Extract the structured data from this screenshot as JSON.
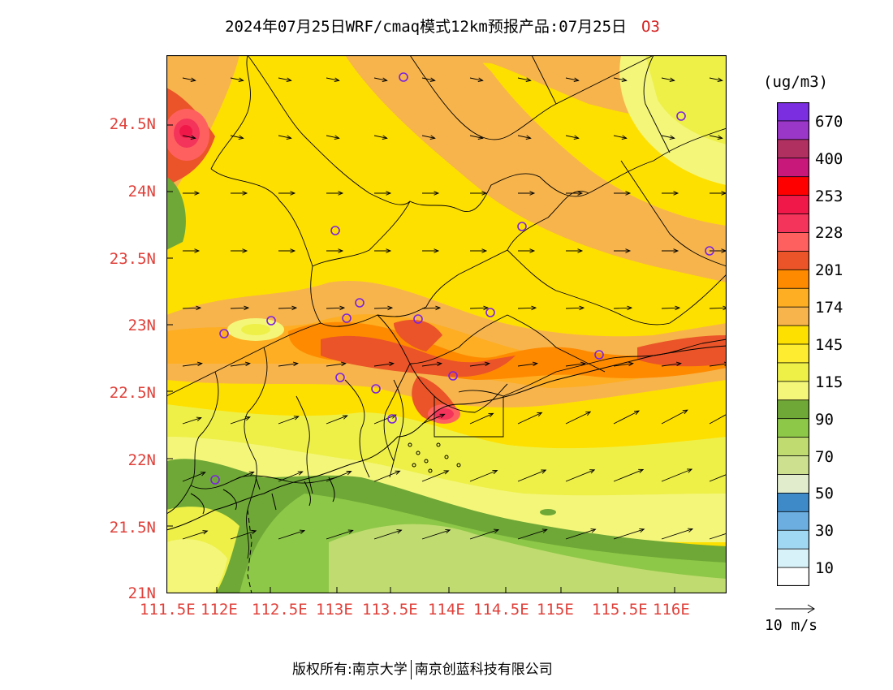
{
  "header": {
    "title": "2024年07月25日WRF/cmaq模式12km预报产品:07月25日",
    "species": "O3"
  },
  "map": {
    "projection": "lat-lon",
    "lon_range": [
      111.5,
      116.5
    ],
    "lat_range": [
      21.0,
      25.0
    ],
    "lat_ticks": [
      "21N",
      "21.5N",
      "22N",
      "22.5N",
      "23N",
      "23.5N",
      "24N",
      "24.5N"
    ],
    "lon_ticks": [
      "111.5E",
      "112E",
      "112.5E",
      "113E",
      "113.5E",
      "114E",
      "114.5E",
      "115E",
      "115.5E",
      "116E"
    ],
    "field": "O3 concentration",
    "wind_vectors": "shown",
    "station_markers": "purple circles"
  },
  "colorbar": {
    "units": "(ug/m3)",
    "labels": [
      "670",
      "400",
      "253",
      "228",
      "201",
      "174",
      "145",
      "115",
      "90",
      "70",
      "50",
      "30",
      "10"
    ],
    "colors": [
      "#7b2ee0",
      "#9a36c8",
      "#b03060",
      "#c8187a",
      "#ff0000",
      "#f01848",
      "#f4345a",
      "#fe6060",
      "#ea5428",
      "#fe8a00",
      "#feae22",
      "#f7b44c",
      "#fee000",
      "#fdec30",
      "#eef048",
      "#f4f67a",
      "#6fa836",
      "#8ec848",
      "#c0dc70",
      "#cce090",
      "#e0eccc",
      "#3e8ac8",
      "#6caedf",
      "#a0d8f4",
      "#d8f2fa",
      "#ffffff"
    ]
  },
  "wind_reference": {
    "label": "10 m/s"
  },
  "footer": {
    "left": "版权所有:南京大学",
    "right": "南京创蓝科技有限公司"
  }
}
